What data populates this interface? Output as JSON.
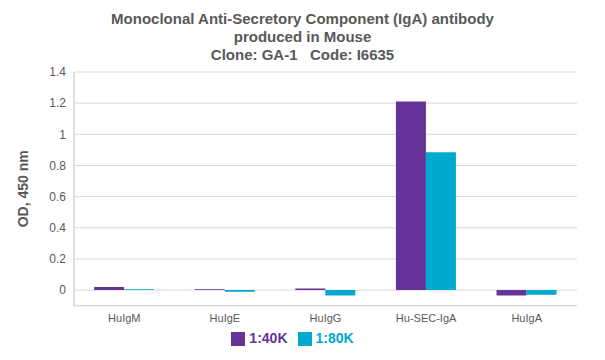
{
  "chart_data": {
    "type": "bar",
    "title": [
      "Monoclonal Anti-Secretory Component (IgA) antibody",
      "produced in Mouse",
      "Clone: GA-1   Code: I6635"
    ],
    "y_label": "OD, 450 nm",
    "categories": [
      "HuIgM",
      "HuIgE",
      "HuIgG",
      "Hu-SEC-IgA",
      "HuIgA"
    ],
    "series": [
      {
        "name": "1:40K",
        "color": "#663399",
        "values": [
          0.02,
          0.005,
          0.01,
          1.21,
          -0.035
        ]
      },
      {
        "name": "1:80K",
        "color": "#00a9ce",
        "values": [
          0.005,
          -0.01,
          -0.035,
          0.885,
          -0.03
        ]
      }
    ],
    "ylim": [
      -0.1,
      1.4
    ],
    "yticks": [
      0,
      0.2,
      0.4,
      0.6,
      0.8,
      1,
      1.2,
      1.4
    ],
    "grid": true,
    "legend": "bottom"
  }
}
